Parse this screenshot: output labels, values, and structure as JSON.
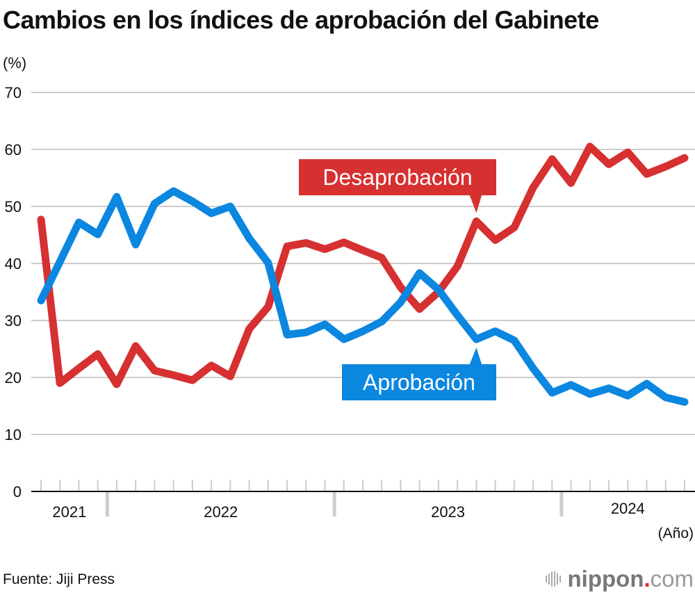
{
  "header": {
    "title": "Cambios en los índices de aprobación del Gabinete",
    "unit": "(%)"
  },
  "footer": {
    "source": "Fuente: Jiji Press",
    "x_unit": "(Año)",
    "logo": {
      "brand": "nippon",
      "dot": ".",
      "suffix": "com"
    }
  },
  "colors": {
    "disapproval": "#d63031",
    "approval": "#0b87e0",
    "grid": "#cccccc",
    "axis": "#111111",
    "year_divider": "#cccccc"
  },
  "chart_data": {
    "type": "line",
    "title": "Cambios en los índices de aprobación del Gabinete",
    "xlabel": "(Año)",
    "ylabel": "(%)",
    "ylim": [
      0,
      70
    ],
    "yticks": [
      0,
      10,
      20,
      30,
      40,
      50,
      60,
      70
    ],
    "grid": true,
    "x": [
      "2021-09",
      "2021-10",
      "2021-11",
      "2021-12",
      "2022-01",
      "2022-02",
      "2022-03",
      "2022-04",
      "2022-05",
      "2022-06",
      "2022-07",
      "2022-08",
      "2022-09",
      "2022-10",
      "2022-11",
      "2022-12",
      "2023-01",
      "2023-02",
      "2023-03",
      "2023-04",
      "2023-05",
      "2023-06",
      "2023-07",
      "2023-08",
      "2023-09",
      "2023-10",
      "2023-11",
      "2023-12",
      "2024-01",
      "2024-02",
      "2024-03",
      "2024-04",
      "2024-05",
      "2024-06",
      "2024-07"
    ],
    "year_groups": [
      {
        "label": "2021",
        "count": 4
      },
      {
        "label": "2022",
        "count": 12
      },
      {
        "label": "2023",
        "count": 12
      },
      {
        "label": "2024",
        "count": 7
      }
    ],
    "series": [
      {
        "name": "Desaprobación",
        "color": "#d63031",
        "values": [
          47.7,
          19.0,
          21.6,
          24.1,
          18.8,
          25.5,
          21.2,
          20.4,
          19.5,
          22.1,
          20.2,
          28.5,
          32.4,
          43.0,
          43.6,
          42.5,
          43.7,
          42.3,
          41.0,
          35.8,
          32.0,
          35.0,
          39.5,
          47.4,
          44.1,
          46.3,
          53.3,
          58.3,
          54.1,
          60.5,
          57.4,
          59.5,
          55.7,
          57.0,
          58.5
        ],
        "callout_index": 23,
        "callout_side": "above"
      },
      {
        "name": "Aprobación",
        "color": "#0b87e0",
        "values": [
          33.5,
          40.3,
          47.2,
          45.1,
          51.7,
          43.3,
          50.5,
          52.7,
          50.9,
          48.8,
          50.0,
          44.4,
          40.1,
          27.5,
          27.9,
          29.3,
          26.7,
          28.1,
          29.8,
          33.2,
          38.3,
          35.4,
          30.9,
          26.7,
          28.1,
          26.5,
          21.6,
          17.3,
          18.7,
          17.1,
          18.1,
          16.8,
          18.9,
          16.5,
          15.7
        ],
        "callout_index": 23,
        "callout_side": "below"
      }
    ]
  }
}
